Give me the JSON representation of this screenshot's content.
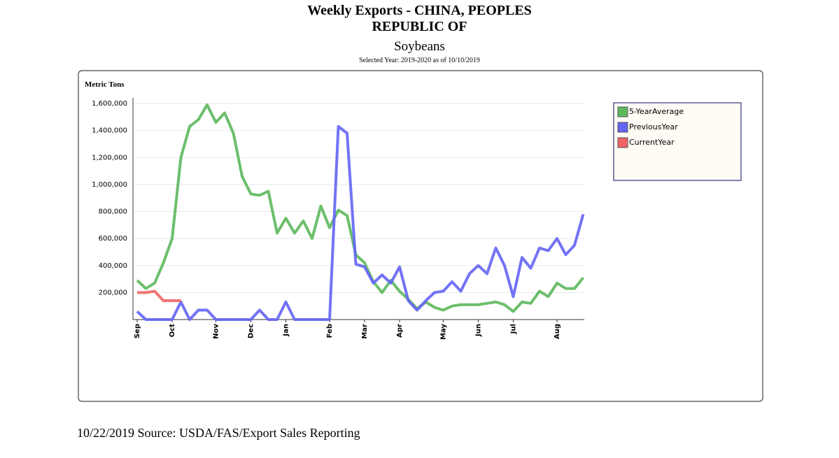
{
  "chart_data": {
    "type": "line",
    "title": "Weekly Exports - CHINA, PEOPLES REPUBLIC OF",
    "subtitle": "Soybeans",
    "selection": "Selected Year: 2019-2020 as of 10/10/2019",
    "y_label": "Metric Tons",
    "source": "10/22/2019 Source: USDA/FAS/Export Sales Reporting",
    "categories": [
      "Sep",
      null,
      null,
      null,
      "Oct",
      null,
      null,
      null,
      null,
      "Nov",
      null,
      null,
      null,
      "Dec",
      null,
      null,
      null,
      "Jan",
      null,
      null,
      null,
      null,
      "Feb",
      null,
      null,
      null,
      "Mar",
      null,
      null,
      null,
      "Apr",
      null,
      null,
      null,
      null,
      "May",
      null,
      null,
      null,
      "Jun",
      null,
      null,
      null,
      "Jul",
      null,
      null,
      null,
      null,
      "Aug",
      null,
      null,
      null
    ],
    "ylim": [
      0,
      1600000
    ],
    "yticks": [
      {
        "value": 200000,
        "label": "200,000"
      },
      {
        "value": 400000,
        "label": "400,000"
      },
      {
        "value": 600000,
        "label": "600,000"
      },
      {
        "value": 800000,
        "label": "800,000"
      },
      {
        "value": 1000000,
        "label": "1,000,000"
      },
      {
        "value": 1200000,
        "label": "1,200,000"
      },
      {
        "value": 1400000,
        "label": "1,400,000"
      },
      {
        "value": 1600000,
        "label": "1,600,000"
      }
    ],
    "grid": true,
    "legend": "right",
    "series": [
      {
        "name": "5-YearAverage",
        "color": "#5cb85c",
        "values": [
          290000,
          230000,
          270000,
          420000,
          600000,
          1200000,
          1430000,
          1480000,
          1590000,
          1460000,
          1530000,
          1380000,
          1060000,
          930000,
          920000,
          950000,
          640000,
          750000,
          640000,
          730000,
          600000,
          840000,
          680000,
          810000,
          770000,
          480000,
          420000,
          280000,
          200000,
          290000,
          210000,
          150000,
          80000,
          130000,
          90000,
          70000,
          100000,
          110000,
          110000,
          110000,
          120000,
          130000,
          110000,
          60000,
          130000,
          120000,
          210000,
          170000,
          270000,
          230000,
          230000,
          310000
        ]
      },
      {
        "name": "PreviousYear",
        "color": "#6464f5",
        "values": [
          60000,
          0,
          0,
          0,
          0,
          130000,
          0,
          70000,
          70000,
          0,
          0,
          0,
          0,
          0,
          70000,
          0,
          0,
          130000,
          0,
          0,
          0,
          0,
          0,
          1430000,
          1380000,
          410000,
          390000,
          270000,
          330000,
          270000,
          390000,
          140000,
          70000,
          140000,
          200000,
          210000,
          280000,
          210000,
          340000,
          400000,
          340000,
          530000,
          400000,
          170000,
          460000,
          380000,
          530000,
          510000,
          600000,
          480000,
          550000,
          780000
        ]
      },
      {
        "name": "CurrentYear",
        "color": "#f06464",
        "values": [
          200000,
          200000,
          210000,
          140000,
          140000,
          140000,
          null,
          null,
          null,
          null,
          null,
          null,
          null,
          null,
          null,
          null,
          null,
          null,
          null,
          null,
          null,
          null,
          null,
          null,
          null,
          null,
          null,
          null,
          null,
          null,
          null,
          null,
          null,
          null,
          null,
          null,
          null,
          null,
          null,
          null,
          null,
          null,
          null,
          null,
          null,
          null,
          null,
          null,
          null,
          null,
          null,
          null
        ]
      }
    ]
  }
}
